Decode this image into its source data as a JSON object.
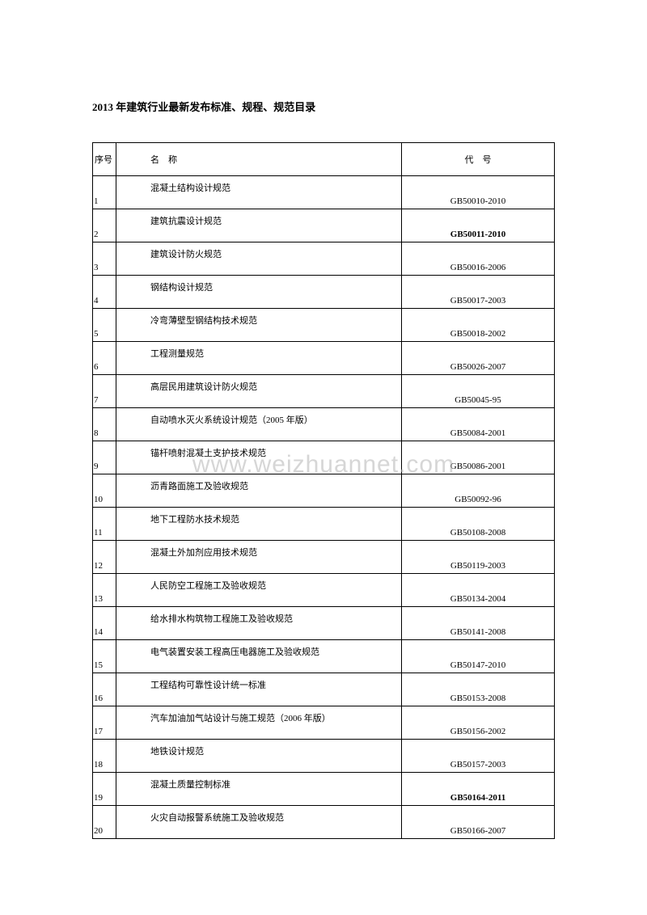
{
  "title": "2013 年建筑行业最新发布标准、规程、规范目录",
  "watermark": "www.weizhuannet.com",
  "table": {
    "headers": {
      "seq": "序号",
      "name": "名　称",
      "code": "代　号"
    },
    "rows": [
      {
        "seq": "1",
        "name": "混凝土结构设计规范",
        "code": "GB50010-2010",
        "bold": false
      },
      {
        "seq": "2",
        "name": "建筑抗震设计规范",
        "code": "GB50011-2010",
        "bold": true
      },
      {
        "seq": "3",
        "name": "建筑设计防火规范",
        "code": "GB50016-2006",
        "bold": false
      },
      {
        "seq": "4",
        "name": "钢结构设计规范",
        "code": "GB50017-2003",
        "bold": false
      },
      {
        "seq": "5",
        "name": "冷弯薄壁型钢结构技术规范",
        "code": "GB50018-2002",
        "bold": false
      },
      {
        "seq": "6",
        "name": "工程测量规范",
        "code": "GB50026-2007",
        "bold": false
      },
      {
        "seq": "7",
        "name": "高层民用建筑设计防火规范",
        "code": "GB50045-95",
        "bold": false
      },
      {
        "seq": "8",
        "name": "自动喷水灭火系统设计规范（2005 年版）",
        "code": "GB50084-2001",
        "bold": false
      },
      {
        "seq": "9",
        "name": "锚杆喷射混凝土支护技术规范",
        "code": "GB50086-2001",
        "bold": false
      },
      {
        "seq": "10",
        "name": "沥青路面施工及验收规范",
        "code": "GB50092-96",
        "bold": false
      },
      {
        "seq": "11",
        "name": "地下工程防水技术规范",
        "code": "GB50108-2008",
        "bold": false
      },
      {
        "seq": "12",
        "name": "混凝土外加剂应用技术规范",
        "code": "GB50119-2003",
        "bold": false
      },
      {
        "seq": "13",
        "name": "人民防空工程施工及验收规范",
        "code": "GB50134-2004",
        "bold": false
      },
      {
        "seq": "14",
        "name": "给水排水构筑物工程施工及验收规范",
        "code": "GB50141-2008",
        "bold": false
      },
      {
        "seq": "15",
        "name": "电气装置安装工程高压电器施工及验收规范",
        "code": "GB50147-2010",
        "bold": false
      },
      {
        "seq": "16",
        "name": "工程结构可靠性设计统一标准",
        "code": "GB50153-2008",
        "bold": false
      },
      {
        "seq": "17",
        "name": "汽车加油加气站设计与施工规范（2006 年版）",
        "code": "GB50156-2002",
        "bold": false
      },
      {
        "seq": "18",
        "name": "地铁设计规范",
        "code": "GB50157-2003",
        "bold": false
      },
      {
        "seq": "19",
        "name": "混凝土质量控制标准",
        "code": "GB50164-2011",
        "bold": true
      },
      {
        "seq": "20",
        "name": "火灾自动报警系统施工及验收规范",
        "code": "GB50166-2007",
        "bold": false
      }
    ]
  }
}
